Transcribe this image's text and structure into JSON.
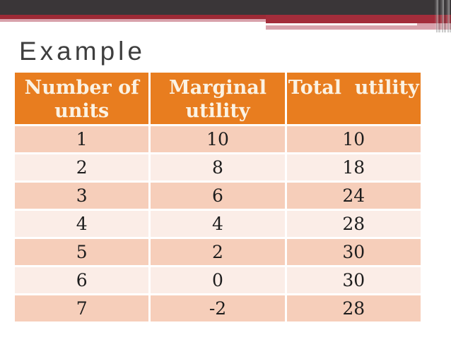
{
  "slide": {
    "title": "Example"
  },
  "table": {
    "headers": [
      "Number of units",
      "Marginal utility",
      "Total  utility"
    ],
    "rows": [
      [
        "1",
        "10",
        "10"
      ],
      [
        "2",
        "8",
        "18"
      ],
      [
        "3",
        "6",
        "24"
      ],
      [
        "4",
        "4",
        "28"
      ],
      [
        "5",
        "2",
        "30"
      ],
      [
        "6",
        "0",
        "30"
      ],
      [
        "7",
        "-2",
        "28"
      ]
    ]
  },
  "colors": {
    "top_bar": "#3A3638",
    "accent_red": "#9D2A36",
    "accent_red2": "#A32D3B",
    "accent_pink": "#D8A2AC",
    "header_bg": "#E87D1F",
    "header_text": "#FBF2E3",
    "row_dark": "#F6CEBA",
    "row_light": "#FBEDE7",
    "title_text": "#3E3E3E"
  }
}
